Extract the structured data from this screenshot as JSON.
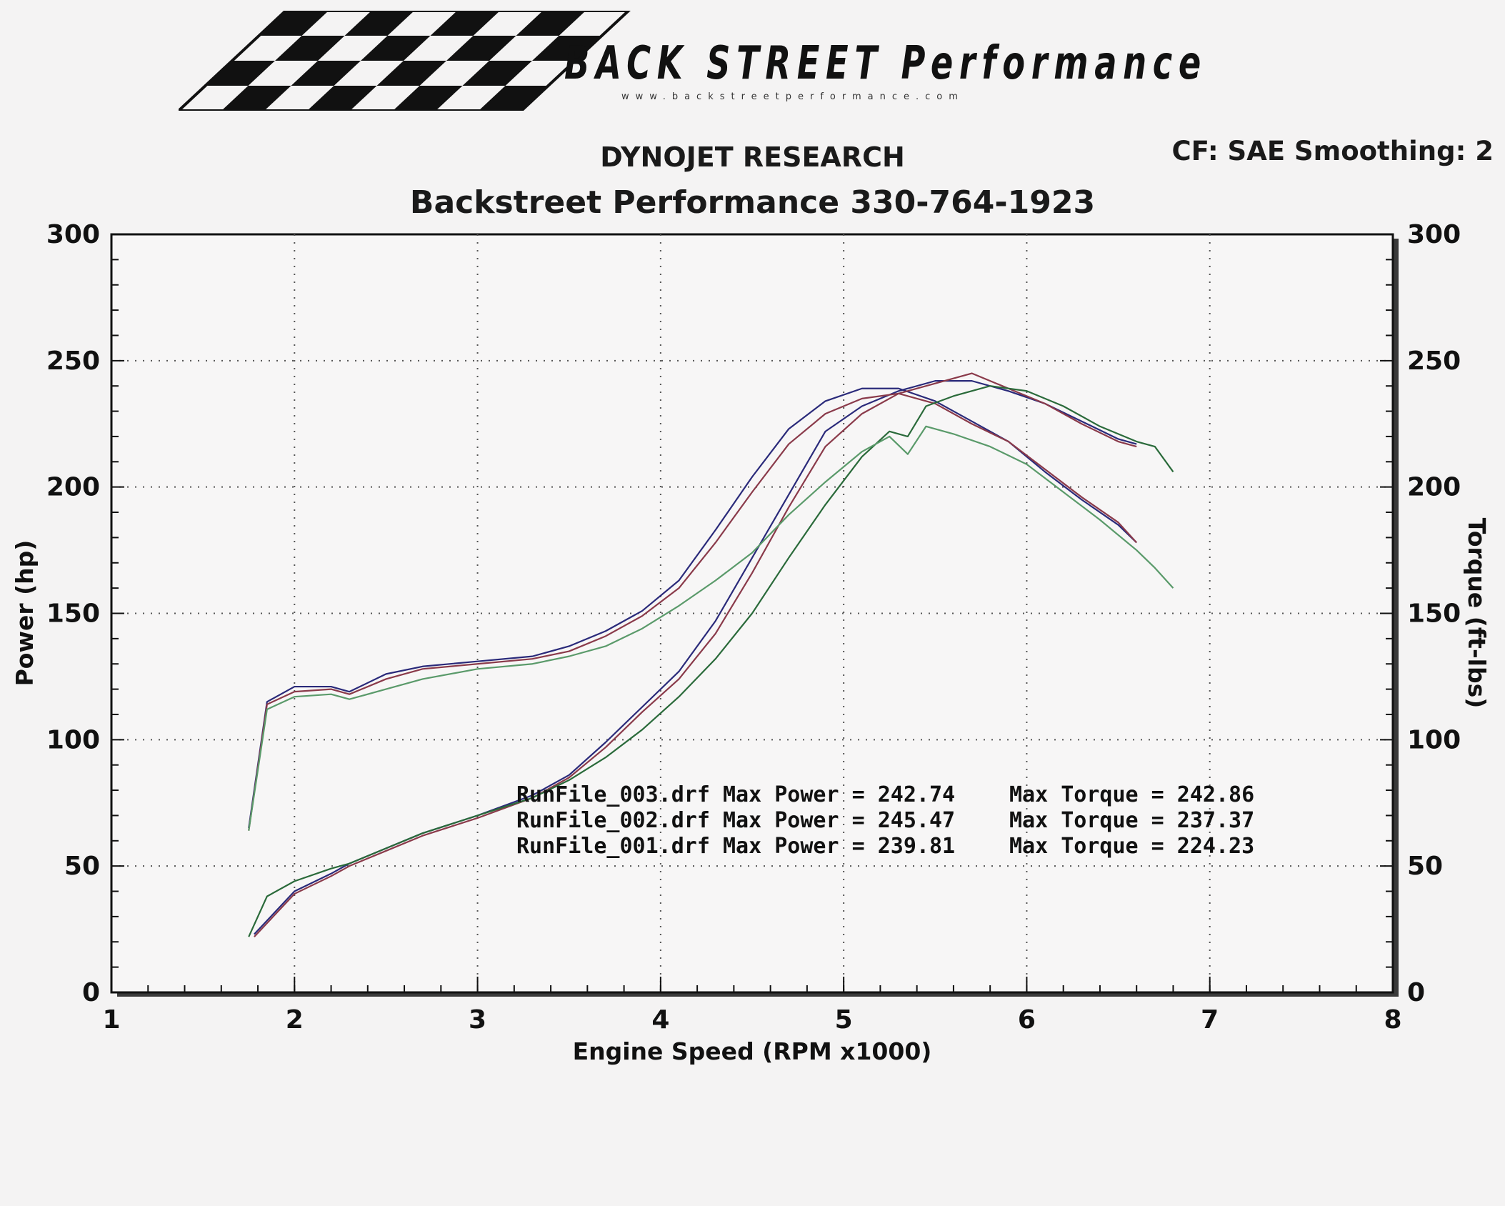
{
  "header": {
    "logo_text": "BACK STREET Performance",
    "logo_website": "www.backstreetperformance.com",
    "title": "DYNOJET RESEARCH",
    "subtitle": "Backstreet Performance 330-764-1923",
    "settings": "CF: SAE  Smoothing: 2"
  },
  "chart_data": {
    "type": "line",
    "xlabel": "Engine Speed (RPM x1000)",
    "ylabel_left": "Power (hp)",
    "ylabel_right": "Torque (ft-lbs)",
    "xlim": [
      1,
      8
    ],
    "ylim": [
      0,
      300
    ],
    "x_ticks": [
      "1",
      "2",
      "3",
      "4",
      "5",
      "6",
      "7",
      "8"
    ],
    "y_ticks": [
      "0",
      "50",
      "100",
      "150",
      "200",
      "250",
      "300"
    ],
    "grid": true,
    "grid_style": "dotted",
    "series": [
      {
        "run": "RunFile_003.drf",
        "measure": "power",
        "color": "#2a2a7a",
        "x": [
          1.78,
          2.0,
          2.2,
          2.3,
          2.5,
          2.7,
          3.0,
          3.3,
          3.5,
          3.7,
          3.9,
          4.1,
          4.3,
          4.5,
          4.7,
          4.9,
          5.1,
          5.3,
          5.5,
          5.7,
          5.9,
          6.1,
          6.3,
          6.5,
          6.6
        ],
        "y": [
          23,
          40,
          47,
          51,
          57,
          63,
          70,
          78,
          86,
          99,
          113,
          127,
          147,
          172,
          197,
          222,
          232,
          238,
          242,
          242,
          238,
          233,
          226,
          219,
          217
        ]
      },
      {
        "run": "RunFile_003.drf",
        "measure": "torque",
        "color": "#2a2a7a",
        "x": [
          1.75,
          1.85,
          2.0,
          2.2,
          2.3,
          2.5,
          2.7,
          3.0,
          3.3,
          3.5,
          3.7,
          3.9,
          4.1,
          4.3,
          4.5,
          4.7,
          4.9,
          5.1,
          5.3,
          5.5,
          5.7,
          5.9,
          6.1,
          6.3,
          6.5,
          6.6
        ],
        "y": [
          65,
          115,
          121,
          121,
          119,
          126,
          129,
          131,
          133,
          137,
          143,
          151,
          163,
          183,
          204,
          223,
          234,
          239,
          239,
          234,
          226,
          218,
          206,
          195,
          185,
          178
        ]
      },
      {
        "run": "RunFile_002.drf",
        "measure": "power",
        "color": "#8a3a4a",
        "x": [
          1.78,
          2.0,
          2.2,
          2.3,
          2.5,
          2.7,
          3.0,
          3.3,
          3.5,
          3.7,
          3.9,
          4.1,
          4.3,
          4.5,
          4.7,
          4.9,
          5.1,
          5.3,
          5.5,
          5.7,
          5.9,
          6.1,
          6.3,
          6.5,
          6.6
        ],
        "y": [
          22,
          39,
          46,
          50,
          56,
          62,
          69,
          77,
          85,
          97,
          111,
          124,
          142,
          166,
          192,
          216,
          229,
          237,
          241,
          245,
          239,
          233,
          225,
          218,
          216
        ]
      },
      {
        "run": "RunFile_002.drf",
        "measure": "torque",
        "color": "#8a3a4a",
        "x": [
          1.75,
          1.85,
          2.0,
          2.2,
          2.3,
          2.5,
          2.7,
          3.0,
          3.3,
          3.5,
          3.7,
          3.9,
          4.1,
          4.3,
          4.5,
          4.7,
          4.9,
          5.1,
          5.3,
          5.5,
          5.7,
          5.9,
          6.1,
          6.3,
          6.5,
          6.6
        ],
        "y": [
          64,
          114,
          119,
          120,
          118,
          124,
          128,
          130,
          132,
          135,
          141,
          149,
          160,
          178,
          198,
          217,
          229,
          235,
          237,
          233,
          225,
          218,
          207,
          196,
          186,
          178
        ]
      },
      {
        "run": "RunFile_001.drf",
        "measure": "power",
        "color": "#2a6a3a",
        "x": [
          1.75,
          1.85,
          2.0,
          2.2,
          2.3,
          2.5,
          2.7,
          3.0,
          3.3,
          3.5,
          3.7,
          3.9,
          4.1,
          4.3,
          4.5,
          4.7,
          4.9,
          5.1,
          5.25,
          5.35,
          5.45,
          5.6,
          5.8,
          6.0,
          6.2,
          6.4,
          6.6,
          6.7,
          6.8
        ],
        "y": [
          22,
          38,
          44,
          49,
          51,
          57,
          63,
          70,
          77,
          84,
          93,
          104,
          117,
          132,
          150,
          172,
          193,
          212,
          222,
          220,
          232,
          236,
          240,
          238,
          232,
          224,
          218,
          216,
          206
        ]
      },
      {
        "run": "RunFile_001.drf",
        "measure": "torque",
        "color": "#5a9a6a",
        "x": [
          1.75,
          1.85,
          2.0,
          2.2,
          2.3,
          2.5,
          2.7,
          3.0,
          3.3,
          3.5,
          3.7,
          3.9,
          4.1,
          4.3,
          4.5,
          4.7,
          4.9,
          5.1,
          5.25,
          5.35,
          5.45,
          5.6,
          5.8,
          6.0,
          6.2,
          6.4,
          6.6,
          6.7,
          6.8
        ],
        "y": [
          64,
          112,
          117,
          118,
          116,
          120,
          124,
          128,
          130,
          133,
          137,
          144,
          153,
          163,
          174,
          189,
          202,
          214,
          220,
          213,
          224,
          221,
          216,
          209,
          198,
          187,
          175,
          168,
          160
        ]
      }
    ],
    "annotations": [
      {
        "file": "RunFile_003.drf",
        "power": "RunFile_003.drf Max Power = 242.74",
        "torque": "Max Torque = 242.86"
      },
      {
        "file": "RunFile_002.drf",
        "power": "RunFile_002.drf Max Power = 245.47",
        "torque": "Max Torque = 237.37"
      },
      {
        "file": "RunFile_001.drf",
        "power": "RunFile_001.drf Max Power = 239.81",
        "torque": "Max Torque = 224.23"
      }
    ]
  }
}
